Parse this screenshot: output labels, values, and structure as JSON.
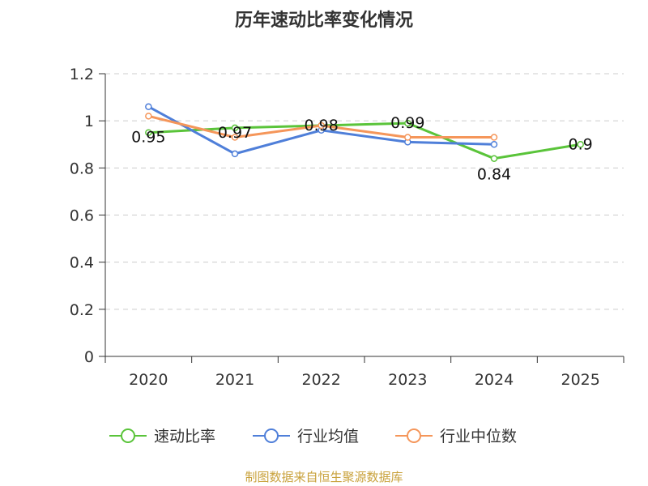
{
  "chart_data": {
    "type": "line",
    "title": "历年速动比率变化情况",
    "categories": [
      "2020",
      "2021",
      "2022",
      "2023",
      "2024",
      "2025"
    ],
    "ylim": [
      0,
      1.2
    ],
    "yticks": [
      "0",
      "0.2",
      "0.4",
      "0.6",
      "0.8",
      "1",
      "1.2"
    ],
    "grid": true,
    "legend_position": "bottom",
    "series": [
      {
        "name": "速动比率",
        "color": "#5ac43a",
        "values": [
          0.95,
          0.97,
          0.98,
          0.99,
          0.84,
          0.9
        ],
        "labels": [
          "0.95",
          "0.97",
          "0.98",
          "0.99",
          "0.84",
          "0.9"
        ]
      },
      {
        "name": "行业均值",
        "color": "#4f7fd9",
        "values": [
          1.06,
          0.86,
          0.96,
          0.91,
          0.9,
          null
        ]
      },
      {
        "name": "行业中位数",
        "color": "#f5965a",
        "values": [
          1.02,
          0.93,
          0.98,
          0.93,
          0.93,
          null
        ]
      }
    ]
  },
  "source": "制图数据来自恒生聚源数据库"
}
